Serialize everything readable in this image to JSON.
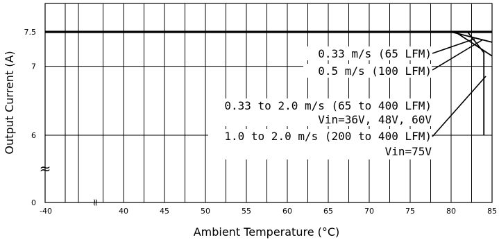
{
  "chart_data": {
    "type": "line",
    "xlabel": "Ambient Temperature (°C)",
    "ylabel": "Output Current (A)",
    "xlim": [
      35,
      85
    ],
    "x_axis_start_label": "-40",
    "x_ticks": [
      40,
      45,
      50,
      55,
      60,
      65,
      70,
      75,
      80,
      85
    ],
    "y_ticks": [
      {
        "label": "0",
        "value": 0
      },
      {
        "label": "6",
        "value": 6
      },
      {
        "label": "7",
        "value": 7
      },
      {
        "label": "7.5",
        "value": 7.5
      }
    ],
    "axis_breaks": [
      "x",
      "y"
    ],
    "grid": true,
    "series": [
      {
        "name": "0.33 m/s (65 LFM)",
        "points": [
          [
            -40,
            7.5
          ],
          [
            80,
            7.5
          ],
          [
            85,
            7.35
          ]
        ]
      },
      {
        "name": "0.5 m/s (100 LFM)",
        "points": [
          [
            -40,
            7.5
          ],
          [
            80.5,
            7.5
          ],
          [
            85,
            7.15
          ]
        ]
      },
      {
        "name": "0.33 to 2.0 m/s (65 to 400 LFM) Vin=36V, 48V, 60V",
        "points": [
          [
            -40,
            7.5
          ],
          [
            85,
            7.5
          ]
        ]
      },
      {
        "name": "1.0 to 2.0 m/s (200 to 400 LFM) Vin=75V",
        "points": [
          [
            -40,
            7.5
          ],
          [
            82,
            7.5
          ],
          [
            84,
            7.2
          ],
          [
            84,
            6.0
          ]
        ]
      }
    ],
    "annotations": [
      "0.33 m/s (65 LFM)",
      "0.5 m/s (100 LFM)",
      "0.33 to 2.0 m/s (65 to 400 LFM)",
      "Vin=36V, 48V, 60V",
      "1.0 to 2.0 m/s (200 to 400 LFM)",
      "Vin=75V"
    ]
  }
}
